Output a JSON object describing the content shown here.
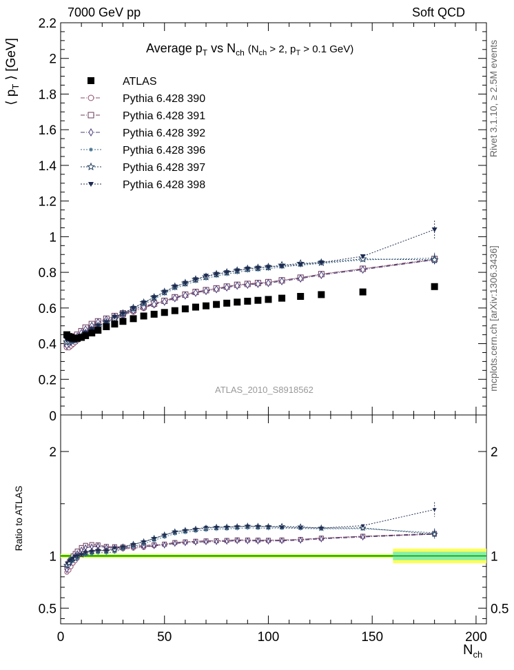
{
  "header": {
    "left": "7000 GeV pp",
    "right": "Soft QCD"
  },
  "side_text": {
    "top": "Rivet 3.1.10, ≥ 2.5M events",
    "bottom": "mcplots.cern.ch [arXiv:1306.3436]"
  },
  "colors": {
    "atlas": "#000000",
    "p390": "#8a4a6a",
    "p391": "#6a3a5a",
    "p392": "#4a3a7a",
    "p396": "#3a6a8a",
    "p397": "#1e3a5a",
    "p398": "#1e2a50",
    "band_inner": "#66dd66",
    "band_outer": "#ffff55",
    "band_inner_right": "#88eeaa"
  },
  "chart_data": {
    "type": "scatter",
    "title_parts": {
      "main": "Average p",
      "main_sub": "T",
      "vs": "vs N",
      "vs_sub": "ch",
      "cond_open": "(N",
      "cond_sub1": "ch",
      "cond_mid": "> 2, p",
      "cond_sub2": "T",
      "cond_close": "> 0.1 GeV)"
    },
    "watermark": "ATLAS_2010_S8918562",
    "ylabel_main": "⟨ p",
    "ylabel_sub": "T",
    "ylabel_end": "⟩ [GeV]",
    "ylabel_ratio": "Ratio to ATLAS",
    "xlabel": "N",
    "xlabel_sub": "ch",
    "xlim": [
      0,
      205
    ],
    "ylim_main": [
      0,
      2.2
    ],
    "ylim_ratio": [
      0.35,
      2.35
    ],
    "x_ticks": [
      "0",
      "50",
      "100",
      "150",
      "200"
    ],
    "y_ticks_main": [
      "0.2",
      "0.4",
      "0.6",
      "0.8",
      "1",
      "1.2",
      "1.4",
      "1.6",
      "1.8",
      "2",
      "2.2"
    ],
    "y_ticks_ratio": [
      "0.5",
      "1",
      "2"
    ],
    "legend_position": "top-left",
    "legend": [
      {
        "name": "ATLAS",
        "marker": "square-filled",
        "key": "atlas"
      },
      {
        "name": "Pythia 6.428 390",
        "marker": "circle-open",
        "key": "p390"
      },
      {
        "name": "Pythia 6.428 391",
        "marker": "square-open",
        "key": "p391"
      },
      {
        "name": "Pythia 6.428 392",
        "marker": "diamond-open",
        "key": "p392"
      },
      {
        "name": "Pythia 6.428 396",
        "marker": "star-small",
        "key": "p396"
      },
      {
        "name": "Pythia 6.428 397",
        "marker": "star-open",
        "key": "p397"
      },
      {
        "name": "Pythia 6.428 398",
        "marker": "triangle-down-filled",
        "key": "p398"
      }
    ],
    "atlas": {
      "x": [
        3,
        4,
        5,
        6,
        7,
        8,
        10,
        12,
        15,
        18,
        22,
        26,
        30,
        35,
        40,
        45,
        50,
        55,
        60,
        65,
        70,
        75,
        80,
        85,
        90,
        95,
        100,
        106.5,
        115.5,
        125.5,
        145.5,
        180
      ],
      "y": [
        0.45,
        0.44,
        0.435,
        0.43,
        0.43,
        0.43,
        0.435,
        0.445,
        0.46,
        0.475,
        0.495,
        0.51,
        0.525,
        0.54,
        0.555,
        0.565,
        0.575,
        0.585,
        0.595,
        0.605,
        0.612,
        0.62,
        0.627,
        0.633,
        0.638,
        0.643,
        0.648,
        0.655,
        0.665,
        0.675,
        0.69,
        0.72
      ],
      "band_x": [
        0,
        160,
        205
      ],
      "band_inner_frac": [
        0.01,
        0.04
      ],
      "band_outer_frac": [
        0.02,
        0.07
      ]
    },
    "series": [
      {
        "name": "Pythia 6.428 390",
        "key": "p390",
        "marker": "circle-open",
        "x": [
          3,
          4,
          5,
          6,
          7,
          8,
          10,
          12,
          15,
          18,
          22,
          26,
          30,
          35,
          40,
          45,
          50,
          55,
          60,
          65,
          70,
          75,
          80,
          85,
          90,
          95,
          100,
          106.5,
          115.5,
          125.5,
          145.5,
          180
        ],
        "y": [
          0.38,
          0.38,
          0.39,
          0.4,
          0.41,
          0.42,
          0.44,
          0.46,
          0.48,
          0.5,
          0.52,
          0.54,
          0.56,
          0.58,
          0.6,
          0.62,
          0.64,
          0.66,
          0.675,
          0.69,
          0.7,
          0.71,
          0.72,
          0.73,
          0.735,
          0.74,
          0.745,
          0.755,
          0.77,
          0.79,
          0.82,
          0.87
        ]
      },
      {
        "name": "Pythia 6.428 391",
        "key": "p391",
        "marker": "square-open",
        "x": [
          3,
          4,
          5,
          6,
          7,
          8,
          10,
          12,
          15,
          18,
          22,
          26,
          30,
          35,
          40,
          45,
          50,
          55,
          60,
          65,
          70,
          75,
          80,
          85,
          90,
          95,
          100,
          106.5,
          115.5,
          125.5,
          145.5,
          180
        ],
        "y": [
          0.4,
          0.41,
          0.42,
          0.43,
          0.44,
          0.45,
          0.47,
          0.49,
          0.51,
          0.525,
          0.54,
          0.555,
          0.57,
          0.59,
          0.61,
          0.625,
          0.64,
          0.66,
          0.675,
          0.69,
          0.7,
          0.71,
          0.72,
          0.73,
          0.735,
          0.74,
          0.745,
          0.755,
          0.77,
          0.79,
          0.82,
          0.875
        ]
      },
      {
        "name": "Pythia 6.428 392",
        "key": "p392",
        "marker": "diamond-open",
        "x": [
          3,
          4,
          5,
          6,
          7,
          8,
          10,
          12,
          15,
          18,
          22,
          26,
          30,
          35,
          40,
          45,
          50,
          55,
          60,
          65,
          70,
          75,
          80,
          85,
          90,
          95,
          100,
          106.5,
          115.5,
          125.5,
          145.5,
          180
        ],
        "y": [
          0.39,
          0.4,
          0.41,
          0.42,
          0.43,
          0.44,
          0.46,
          0.48,
          0.5,
          0.52,
          0.535,
          0.55,
          0.565,
          0.585,
          0.605,
          0.62,
          0.635,
          0.655,
          0.67,
          0.685,
          0.695,
          0.705,
          0.715,
          0.725,
          0.73,
          0.735,
          0.74,
          0.75,
          0.765,
          0.785,
          0.815,
          0.87
        ]
      },
      {
        "name": "Pythia 6.428 396",
        "key": "p396",
        "marker": "star-small",
        "x": [
          3,
          4,
          5,
          6,
          7,
          8,
          10,
          12,
          15,
          18,
          22,
          26,
          30,
          35,
          40,
          45,
          50,
          55,
          60,
          65,
          70,
          75,
          80,
          85,
          90,
          95,
          100,
          106.5,
          115.5,
          125.5,
          145.5,
          180
        ],
        "y": [
          0.41,
          0.41,
          0.41,
          0.41,
          0.42,
          0.42,
          0.44,
          0.45,
          0.47,
          0.49,
          0.51,
          0.53,
          0.56,
          0.59,
          0.62,
          0.65,
          0.68,
          0.71,
          0.73,
          0.75,
          0.765,
          0.78,
          0.79,
          0.8,
          0.81,
          0.815,
          0.82,
          0.83,
          0.84,
          0.85,
          0.87,
          0.88
        ]
      },
      {
        "name": "Pythia 6.428 397",
        "key": "p397",
        "marker": "star-open",
        "x": [
          3,
          4,
          5,
          6,
          7,
          8,
          10,
          12,
          15,
          18,
          22,
          26,
          30,
          35,
          40,
          45,
          50,
          55,
          60,
          65,
          70,
          75,
          80,
          85,
          90,
          95,
          100,
          106.5,
          115.5,
          125.5,
          145.5,
          180
        ],
        "y": [
          0.41,
          0.41,
          0.42,
          0.42,
          0.42,
          0.43,
          0.44,
          0.46,
          0.48,
          0.5,
          0.52,
          0.54,
          0.57,
          0.6,
          0.63,
          0.66,
          0.69,
          0.72,
          0.74,
          0.76,
          0.775,
          0.79,
          0.8,
          0.81,
          0.82,
          0.825,
          0.83,
          0.84,
          0.85,
          0.855,
          0.875,
          0.87
        ]
      },
      {
        "name": "Pythia 6.428 398",
        "key": "p398",
        "marker": "triangle-down-filled",
        "x": [
          3,
          4,
          5,
          6,
          7,
          8,
          10,
          12,
          15,
          18,
          22,
          26,
          30,
          35,
          40,
          45,
          50,
          55,
          60,
          65,
          70,
          75,
          80,
          85,
          90,
          95,
          100,
          106.5,
          115.5,
          125.5,
          145.5,
          180
        ],
        "y": [
          0.42,
          0.42,
          0.42,
          0.42,
          0.43,
          0.43,
          0.44,
          0.46,
          0.48,
          0.5,
          0.52,
          0.55,
          0.57,
          0.6,
          0.63,
          0.66,
          0.69,
          0.72,
          0.74,
          0.76,
          0.78,
          0.79,
          0.8,
          0.81,
          0.82,
          0.825,
          0.83,
          0.835,
          0.845,
          0.855,
          0.89,
          1.04
        ]
      }
    ]
  }
}
